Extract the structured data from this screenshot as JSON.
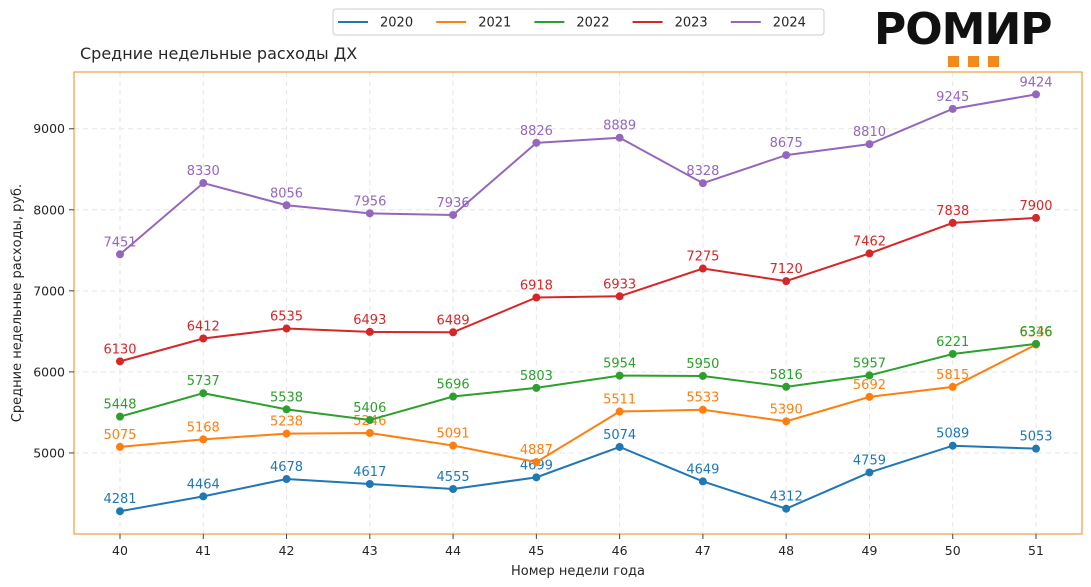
{
  "logo": {
    "text": "РОМИР",
    "square_color": "#f28a1c"
  },
  "chart_data": {
    "type": "line",
    "title": "Средние недельные расходы ДХ",
    "xlabel": "Номер недели года",
    "ylabel": "Средние недельные расходы, руб.",
    "x": [
      40,
      41,
      42,
      43,
      44,
      45,
      46,
      47,
      48,
      49,
      50,
      51
    ],
    "yticks": [
      5000,
      6000,
      7000,
      8000,
      9000
    ],
    "ylim": [
      4000,
      9700
    ],
    "grid": true,
    "legend": "top-center",
    "frame_color": "#f28a1c",
    "series": [
      {
        "name": "2020",
        "color": "#1f77b4",
        "values": [
          4281,
          4464,
          4678,
          4617,
          4555,
          4699,
          5074,
          4649,
          4312,
          4759,
          5089,
          5053
        ]
      },
      {
        "name": "2021",
        "color": "#ff7f0e",
        "values": [
          5075,
          5168,
          5238,
          5246,
          5091,
          4887,
          5511,
          5533,
          5390,
          5692,
          5815,
          6336
        ]
      },
      {
        "name": "2022",
        "color": "#2ca02c",
        "values": [
          5448,
          5737,
          5538,
          5406,
          5696,
          5803,
          5954,
          5950,
          5816,
          5957,
          6221,
          6346
        ]
      },
      {
        "name": "2023",
        "color": "#d62728",
        "values": [
          6130,
          6412,
          6535,
          6493,
          6489,
          6918,
          6933,
          7275,
          7120,
          7462,
          7838,
          7900
        ]
      },
      {
        "name": "2024",
        "color": "#9467bd",
        "values": [
          7451,
          8330,
          8056,
          7956,
          7936,
          8826,
          8889,
          8328,
          8675,
          8810,
          9245,
          9424
        ]
      }
    ]
  }
}
